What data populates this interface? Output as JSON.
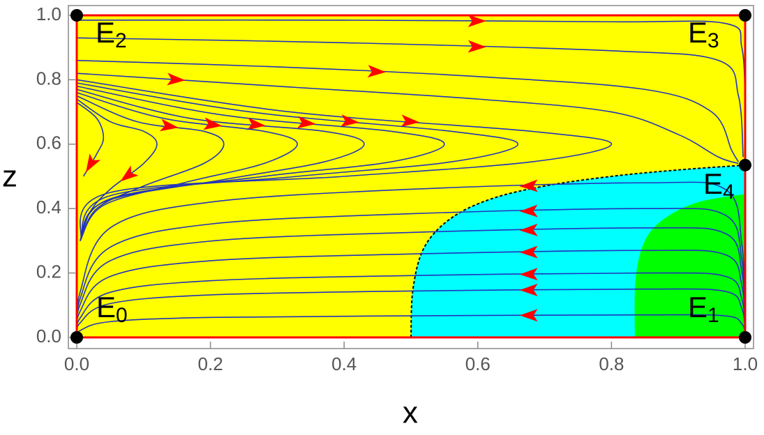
{
  "chart_data": {
    "type": "phase-portrait",
    "x_label": "x",
    "y_label": "z",
    "xlim": [
      0,
      1
    ],
    "ylim": [
      0,
      1
    ],
    "xticks": [
      {
        "value": 0,
        "label": "0.0"
      },
      {
        "value": 0.2,
        "label": "0.2"
      },
      {
        "value": 0.4,
        "label": "0.4"
      },
      {
        "value": 0.6,
        "label": "0.6"
      },
      {
        "value": 0.8,
        "label": "0.8"
      },
      {
        "value": 1,
        "label": "1.0"
      }
    ],
    "yticks": [
      {
        "value": 0,
        "label": "0.0"
      },
      {
        "value": 0.2,
        "label": "0.2"
      },
      {
        "value": 0.4,
        "label": "0.4"
      },
      {
        "value": 0.6,
        "label": "0.6"
      },
      {
        "value": 0.8,
        "label": "0.8"
      },
      {
        "value": 1,
        "label": "1.0"
      }
    ],
    "background": "#ffff00",
    "boundary_color": "#ff0000",
    "line_color": "#2233bb",
    "arrow_color": "#ff0000",
    "regions": [
      {
        "color": "#00ffff",
        "x": [
          0.5,
          0.503,
          0.52,
          0.56,
          0.62,
          0.7,
          0.8,
          0.9,
          1
        ],
        "z": [
          0,
          0.15,
          0.28,
          0.37,
          0.43,
          0.47,
          0.5,
          0.52,
          0.535
        ]
      },
      {
        "color": "#00ff00",
        "x": [
          0.835,
          0.836,
          0.85,
          0.88,
          0.93,
          1
        ],
        "z": [
          0,
          0.18,
          0.3,
          0.37,
          0.42,
          0.445
        ]
      }
    ],
    "equilibria": [
      {
        "label": "E",
        "sub": "0",
        "x": 0,
        "z": 0
      },
      {
        "label": "E",
        "sub": "1",
        "x": 1,
        "z": 0
      },
      {
        "label": "E",
        "sub": "2",
        "x": 0,
        "z": 1
      },
      {
        "label": "E",
        "sub": "3",
        "x": 1,
        "z": 1
      },
      {
        "label": "E",
        "sub": "4",
        "x": 1,
        "z": 0.535
      }
    ],
    "streamlines": [
      {
        "x": [
          0,
          0.4,
          0.8,
          0.97,
          0.995,
          1,
          1
        ],
        "z": [
          0.985,
          0.985,
          0.98,
          0.975,
          0.9,
          0.7,
          0.54
        ]
      },
      {
        "x": [
          0,
          0.4,
          0.8,
          0.96,
          0.99,
          0.997
        ],
        "z": [
          0.93,
          0.915,
          0.89,
          0.86,
          0.75,
          0.56
        ]
      },
      {
        "x": [
          0,
          0.3,
          0.6,
          0.85,
          0.95,
          0.98,
          0.99
        ],
        "z": [
          0.86,
          0.84,
          0.81,
          0.77,
          0.7,
          0.58,
          0.545
        ]
      },
      {
        "x": [
          0,
          0.3,
          0.6,
          0.8,
          0.9,
          0.96,
          0.99
        ],
        "z": [
          0.82,
          0.78,
          0.74,
          0.7,
          0.63,
          0.56,
          0.54
        ]
      },
      {
        "x": [
          0,
          0.32,
          0.68,
          0.8,
          0.68,
          0.4,
          0.05,
          0.005
        ],
        "z": [
          0.8,
          0.7,
          0.64,
          0.6,
          0.545,
          0.5,
          0.45,
          0.3
        ]
      },
      {
        "x": [
          0,
          0.26,
          0.56,
          0.66,
          0.56,
          0.33,
          0.05,
          0.005
        ],
        "z": [
          0.79,
          0.7,
          0.64,
          0.6,
          0.545,
          0.5,
          0.44,
          0.3
        ]
      },
      {
        "x": [
          0,
          0.22,
          0.47,
          0.55,
          0.47,
          0.28,
          0.05,
          0.005
        ],
        "z": [
          0.78,
          0.69,
          0.64,
          0.6,
          0.545,
          0.5,
          0.43,
          0.3
        ]
      },
      {
        "x": [
          0,
          0.17,
          0.37,
          0.43,
          0.37,
          0.22,
          0.04,
          0.005
        ],
        "z": [
          0.77,
          0.68,
          0.64,
          0.6,
          0.545,
          0.49,
          0.42,
          0.3
        ]
      },
      {
        "x": [
          0,
          0.13,
          0.28,
          0.33,
          0.28,
          0.16,
          0.04,
          0.005
        ],
        "z": [
          0.76,
          0.68,
          0.64,
          0.6,
          0.54,
          0.48,
          0.41,
          0.3
        ]
      },
      {
        "x": [
          0,
          0.09,
          0.19,
          0.22,
          0.19,
          0.1,
          0.03,
          0.005
        ],
        "z": [
          0.75,
          0.67,
          0.64,
          0.6,
          0.54,
          0.47,
          0.4,
          0.3
        ]
      },
      {
        "x": [
          0,
          0.05,
          0.1,
          0.12,
          0.1,
          0.05,
          0.02,
          0.005
        ],
        "z": [
          0.74,
          0.67,
          0.64,
          0.6,
          0.54,
          0.46,
          0.39,
          0.3
        ]
      },
      {
        "x": [
          0,
          0.03,
          0.04,
          0.03,
          0.01
        ],
        "z": [
          0.73,
          0.68,
          0.62,
          0.57,
          0.5
        ]
      },
      {
        "x": [
          1,
          0.995,
          0.97,
          0.85,
          0.5,
          0.2,
          0.05,
          0.005,
          0
        ],
        "z": [
          0.01,
          0.29,
          0.46,
          0.48,
          0.46,
          0.42,
          0.34,
          0.14,
          0
        ]
      },
      {
        "x": [
          1,
          0.995,
          0.97,
          0.85,
          0.5,
          0.2,
          0.05,
          0.005,
          0
        ],
        "z": [
          0.01,
          0.24,
          0.38,
          0.4,
          0.384,
          0.352,
          0.28,
          0.12,
          0
        ]
      },
      {
        "x": [
          1,
          0.995,
          0.97,
          0.85,
          0.5,
          0.2,
          0.05,
          0.005,
          0
        ],
        "z": [
          0.01,
          0.204,
          0.323,
          0.34,
          0.326,
          0.299,
          0.238,
          0.102,
          0
        ]
      },
      {
        "x": [
          1,
          0.995,
          0.97,
          0.85,
          0.5,
          0.2,
          0.05,
          0.005,
          0
        ],
        "z": [
          0.01,
          0.162,
          0.257,
          0.27,
          0.259,
          0.238,
          0.189,
          0.081,
          0
        ]
      },
      {
        "x": [
          1,
          0.995,
          0.97,
          0.85,
          0.5,
          0.2,
          0.05,
          0.005,
          0
        ],
        "z": [
          0.01,
          0.12,
          0.19,
          0.2,
          0.192,
          0.176,
          0.14,
          0.06,
          0
        ]
      },
      {
        "x": [
          1,
          0.995,
          0.97,
          0.85,
          0.5,
          0.2,
          0.05,
          0.005,
          0
        ],
        "z": [
          0.01,
          0.09,
          0.143,
          0.15,
          0.144,
          0.132,
          0.105,
          0.045,
          0
        ]
      },
      {
        "x": [
          1,
          0.995,
          0.97,
          0.85,
          0.5,
          0.2,
          0.05,
          0.005,
          0
        ],
        "z": [
          0.01,
          0.042,
          0.067,
          0.07,
          0.067,
          0.062,
          0.049,
          0.021,
          0
        ]
      }
    ]
  }
}
